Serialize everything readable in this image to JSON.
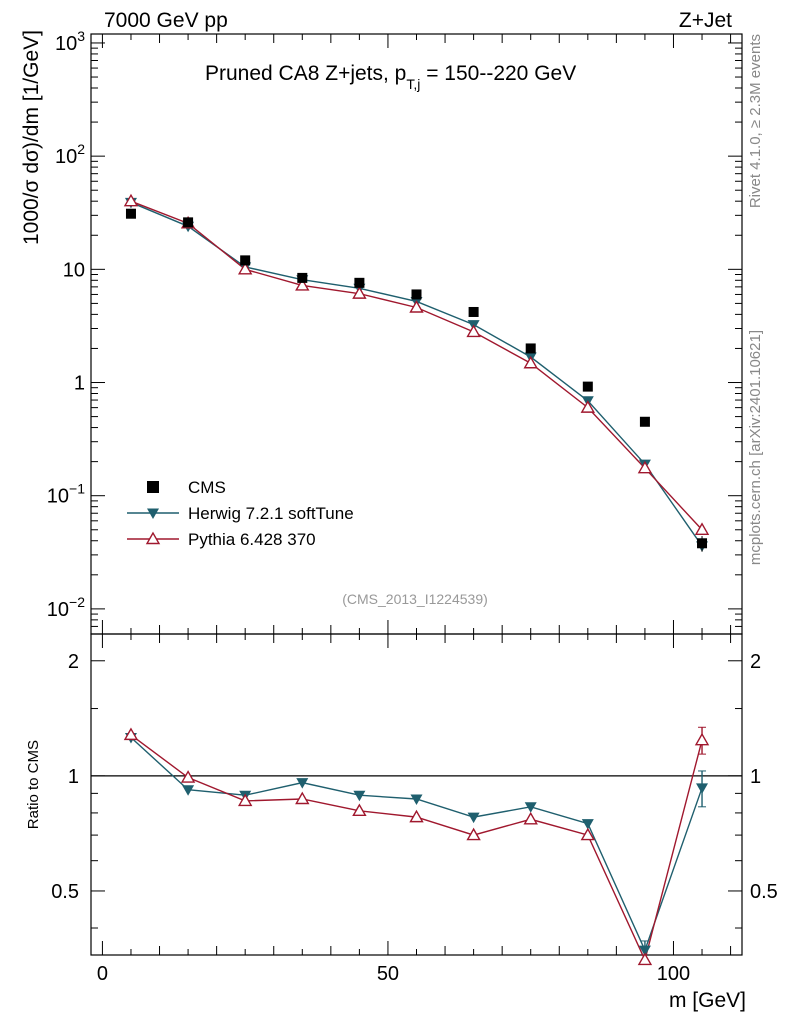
{
  "header": {
    "left": "7000 GeV pp",
    "right": "Z+Jet"
  },
  "side": {
    "rivet": "Rivet 4.1.0, ≥ 2.3M events",
    "mcplots": "mcplots.cern.ch [arXiv:2401.10621]"
  },
  "chart_data": {
    "type": "scatter",
    "title": "Pruned CA8 Z+jets, p_T,j = 150--220 GeV",
    "title_main": "Pruned CA8 Z+jets, p",
    "title_sub": "T,j",
    "title_rest": " = 150--220 GeV",
    "analysis_id": "(CMS_2013_I1224539)",
    "ylabel": "1000/σ  dσ)/dm [1/GeV]",
    "ratio_ylabel": "Ratio to CMS",
    "xlabel": "m [GeV]",
    "x": [
      5,
      15,
      25,
      35,
      45,
      55,
      65,
      75,
      85,
      95,
      105
    ],
    "xlim": [
      -2,
      112
    ],
    "ylim": [
      0.006,
      1200
    ],
    "ratio_ylim": [
      0.34,
      2.35
    ],
    "x_ticks": [
      "0",
      "50",
      "100"
    ],
    "y_ticks": [
      "10^-2",
      "10^-1",
      "1",
      "10",
      "10^2",
      "10^3"
    ],
    "ratio_ticks": [
      "0.5",
      "1",
      "2"
    ],
    "series": [
      {
        "name": "CMS",
        "color": "#000000",
        "marker": "square",
        "values": [
          31,
          26,
          12,
          8.4,
          7.6,
          6.0,
          4.2,
          2.0,
          0.92,
          0.45,
          0.038
        ],
        "errors": [
          1.5,
          1.2,
          0.6,
          0.4,
          0.35,
          0.3,
          0.2,
          0.1,
          0.05,
          0.03,
          0.006
        ]
      },
      {
        "name": "Herwig 7.2.1 softTune",
        "color": "#1f5f6e",
        "marker": "triangle-down",
        "values": [
          39,
          24,
          10.5,
          8.1,
          6.8,
          5.2,
          3.25,
          1.68,
          0.69,
          0.19,
          0.036
        ],
        "ratio": [
          1.26,
          0.92,
          0.89,
          0.96,
          0.89,
          0.87,
          0.78,
          0.83,
          0.75,
          0.35,
          0.93
        ],
        "ratio_errors": [
          0,
          0,
          0,
          0,
          0,
          0,
          0,
          0,
          0,
          0.02,
          0.1
        ]
      },
      {
        "name": "Pythia 6.428 370",
        "color": "#a0182e",
        "marker": "triangle-up-open",
        "values": [
          40,
          25.5,
          10,
          7.2,
          6.1,
          4.6,
          2.8,
          1.48,
          0.6,
          0.175,
          0.05
        ],
        "ratio": [
          1.28,
          0.99,
          0.86,
          0.87,
          0.81,
          0.78,
          0.7,
          0.77,
          0.7,
          0.33,
          1.24
        ],
        "ratio_errors": [
          0,
          0,
          0,
          0,
          0,
          0,
          0,
          0,
          0,
          0,
          0.1
        ]
      }
    ]
  }
}
